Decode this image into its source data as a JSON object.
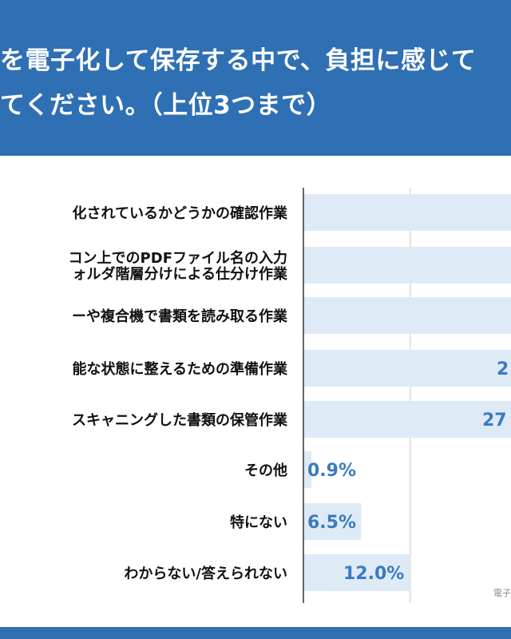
{
  "header": {
    "title_line1": "を電子化して保存する中で、負担に感じて",
    "title_line2": "てください。（上位3つまで）"
  },
  "source": "電子",
  "colors": {
    "header": "#2f6fb3",
    "bar": "#deebf7",
    "value": "#3a7bc0",
    "label": "#111111"
  },
  "chart_data": {
    "type": "bar",
    "orientation": "horizontal",
    "categories": [
      "化されているかどうかの確認作業",
      "コン上でのPDFファイル名の入力\nォルダ階層分けによる仕分け作業",
      "ーや複合機で書類を読み取る作業",
      "能な状態に整えるための準備作業",
      "スキャニングした書類の保管作業",
      "その他",
      "特にない",
      "わからない/答えられない"
    ],
    "values": [
      null,
      null,
      null,
      null,
      27,
      0.9,
      6.5,
      12.0
    ],
    "value_labels": [
      "",
      "",
      "",
      "2",
      "27",
      "0.9%",
      "6.5%",
      "12.0%"
    ],
    "unit": "%",
    "xlim": [
      0,
      40
    ],
    "grid": true
  }
}
